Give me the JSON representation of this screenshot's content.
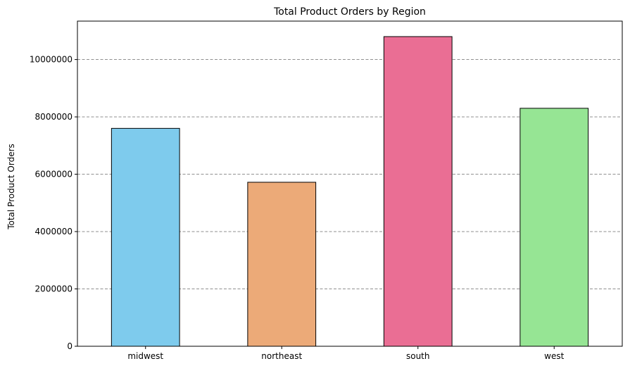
{
  "chart_data": {
    "type": "bar",
    "title": "Total Product Orders by Region",
    "xlabel": "",
    "ylabel": "Total Product Orders",
    "categories": [
      "midwest",
      "northeast",
      "south",
      "west"
    ],
    "values": [
      7600000,
      5720000,
      10800000,
      8300000
    ],
    "ylim": [
      0,
      11340000
    ],
    "yticks": [
      0,
      2000000,
      4000000,
      6000000,
      8000000,
      10000000
    ],
    "ytick_labels": [
      "0",
      "2000000",
      "4000000",
      "6000000",
      "8000000",
      "10000000"
    ],
    "grid": {
      "axis": "y",
      "style": "dashed",
      "color": "#808080"
    },
    "colors": [
      "#7ecbed",
      "#ecaa78",
      "#ea6e94",
      "#96e594"
    ],
    "edge_color": "#000000"
  }
}
